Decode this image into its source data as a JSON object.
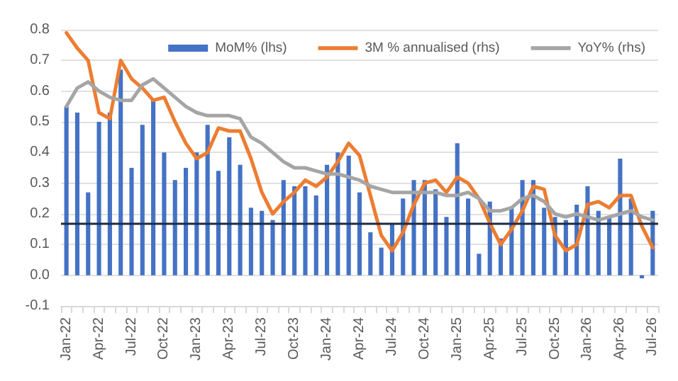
{
  "chart_data": {
    "type": "bar",
    "categories": [
      "Jan-22",
      null,
      null,
      "Apr-22",
      null,
      null,
      "Jul-22",
      null,
      null,
      "Oct-22",
      null,
      null,
      "Jan-23",
      null,
      null,
      "Apr-23",
      null,
      null,
      "Jul-23",
      null,
      null,
      "Oct-23",
      null,
      null,
      "Jan-24",
      null,
      null,
      "Apr-24",
      null,
      null,
      "Jul-24",
      null,
      null,
      "Oct-24",
      null,
      null,
      "Jan-25",
      null,
      null,
      "Apr-25",
      null,
      null,
      "Jul-25",
      null,
      null,
      "Oct-25",
      null,
      null,
      "Jan-26",
      null,
      null,
      "Apr-26",
      null,
      null,
      "Jul-26"
    ],
    "series": [
      {
        "name": "MoM% (lhs)",
        "color": "#4472c4",
        "values": [
          0.55,
          0.53,
          0.27,
          0.5,
          0.53,
          0.67,
          0.35,
          0.49,
          0.57,
          0.4,
          0.31,
          0.35,
          0.4,
          0.49,
          0.34,
          0.45,
          0.36,
          0.22,
          0.21,
          0.18,
          0.31,
          0.29,
          0.29,
          0.26,
          0.36,
          0.4,
          0.39,
          0.27,
          0.14,
          0.09,
          0.17,
          0.25,
          0.31,
          0.31,
          0.28,
          0.19,
          0.43,
          0.25,
          0.07,
          0.24,
          0.12,
          0.22,
          0.31,
          0.31,
          0.22,
          0.19,
          0.18,
          0.23,
          0.29,
          0.21,
          0.19,
          0.38,
          0.25,
          -0.01,
          0.21
        ]
      },
      {
        "name": "3M % annualised (rhs)",
        "type": "line",
        "color": "#ed7d31",
        "values": [
          0.79,
          0.74,
          0.7,
          0.53,
          0.51,
          0.7,
          0.64,
          0.61,
          0.57,
          0.58,
          0.5,
          0.43,
          0.38,
          0.4,
          0.48,
          0.47,
          0.47,
          0.38,
          0.27,
          0.2,
          0.24,
          0.27,
          0.31,
          0.29,
          0.32,
          0.37,
          0.43,
          0.39,
          0.26,
          0.13,
          0.08,
          0.14,
          0.23,
          0.3,
          0.31,
          0.27,
          0.32,
          0.3,
          0.25,
          0.17,
          0.1,
          0.15,
          0.21,
          0.29,
          0.28,
          0.13,
          0.08,
          0.1,
          0.23,
          0.24,
          0.22,
          0.26,
          0.26,
          0.16,
          0.09
        ]
      },
      {
        "name": "YoY% (rhs)",
        "type": "line",
        "color": "#a5a5a5",
        "values": [
          0.55,
          0.61,
          0.63,
          0.6,
          0.58,
          0.57,
          0.57,
          0.62,
          0.64,
          0.61,
          0.58,
          0.55,
          0.53,
          0.52,
          0.52,
          0.52,
          0.51,
          0.45,
          0.43,
          0.4,
          0.37,
          0.35,
          0.35,
          0.34,
          0.33,
          0.33,
          0.32,
          0.31,
          0.29,
          0.28,
          0.27,
          0.27,
          0.27,
          0.27,
          0.27,
          0.26,
          0.26,
          0.27,
          0.25,
          0.21,
          0.21,
          0.22,
          0.25,
          0.26,
          0.24,
          0.2,
          0.19,
          0.2,
          0.19,
          0.18,
          0.19,
          0.2,
          0.21,
          0.19,
          0.18
        ]
      }
    ],
    "ylim": [
      -0.1,
      0.8
    ],
    "yticks": [
      {
        "value": -0.1,
        "label": "-0.1"
      },
      {
        "value": 0,
        "label": "0.0"
      },
      {
        "value": 0.1,
        "label": "0.1"
      },
      {
        "value": 0.2,
        "label": "0.2"
      },
      {
        "value": 0.3,
        "label": "0.3"
      },
      {
        "value": 0.4,
        "label": "0.4"
      },
      {
        "value": 0.5,
        "label": "0.5"
      },
      {
        "value": 0.6,
        "label": "0.6"
      },
      {
        "value": 0.7,
        "label": "0.7"
      },
      {
        "value": 0.8,
        "label": "0.8"
      }
    ],
    "ref_lines": [
      {
        "axis": "y",
        "value": 0.17,
        "color": "#1f2a44"
      }
    ],
    "grid": "y",
    "legend": "top right",
    "marker": "none",
    "line_style": "solid"
  }
}
